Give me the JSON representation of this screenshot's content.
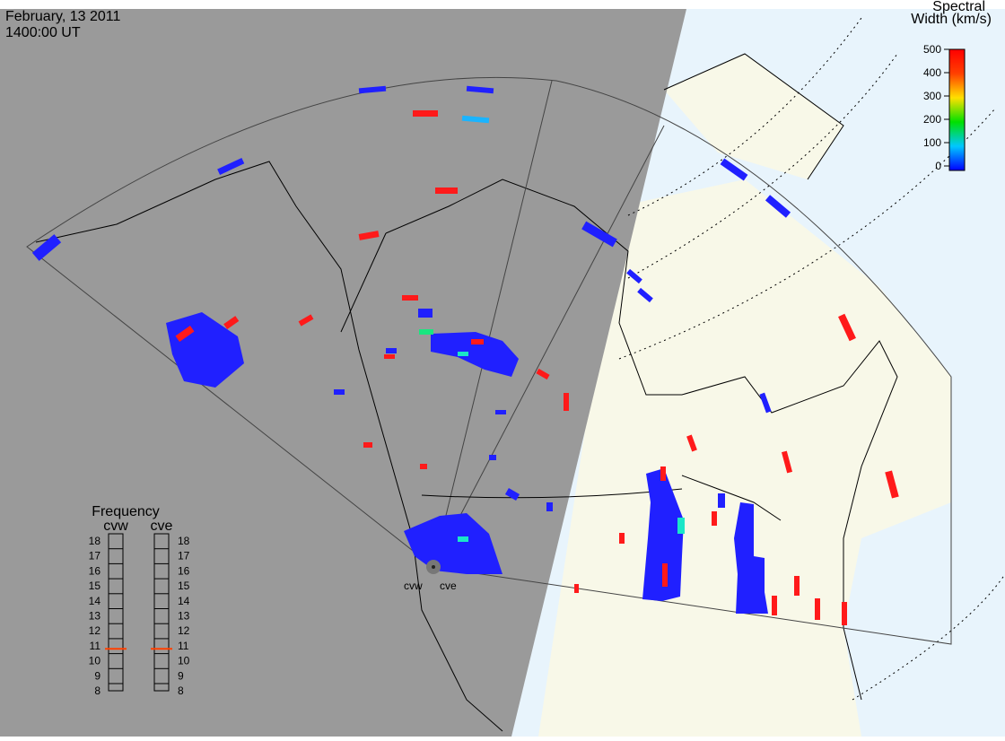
{
  "header": {
    "date": "February, 13 2011",
    "time": "1400:00 UT"
  },
  "colorbar": {
    "title": [
      "Spectral",
      "Width (km/s)"
    ],
    "range": [
      0,
      500
    ],
    "ticks": [
      0,
      100,
      200,
      300,
      400,
      500
    ]
  },
  "frequency": {
    "title": "Frequency",
    "range": [
      8,
      18
    ],
    "ticks": [
      8,
      9,
      10,
      11,
      12,
      13,
      14,
      15,
      16,
      17,
      18
    ],
    "radars": [
      {
        "name": "cvw",
        "value": 10.8
      },
      {
        "name": "cve",
        "value": 10.8
      }
    ]
  },
  "map": {
    "radar_labels": [
      "cvw",
      "cve"
    ]
  }
}
